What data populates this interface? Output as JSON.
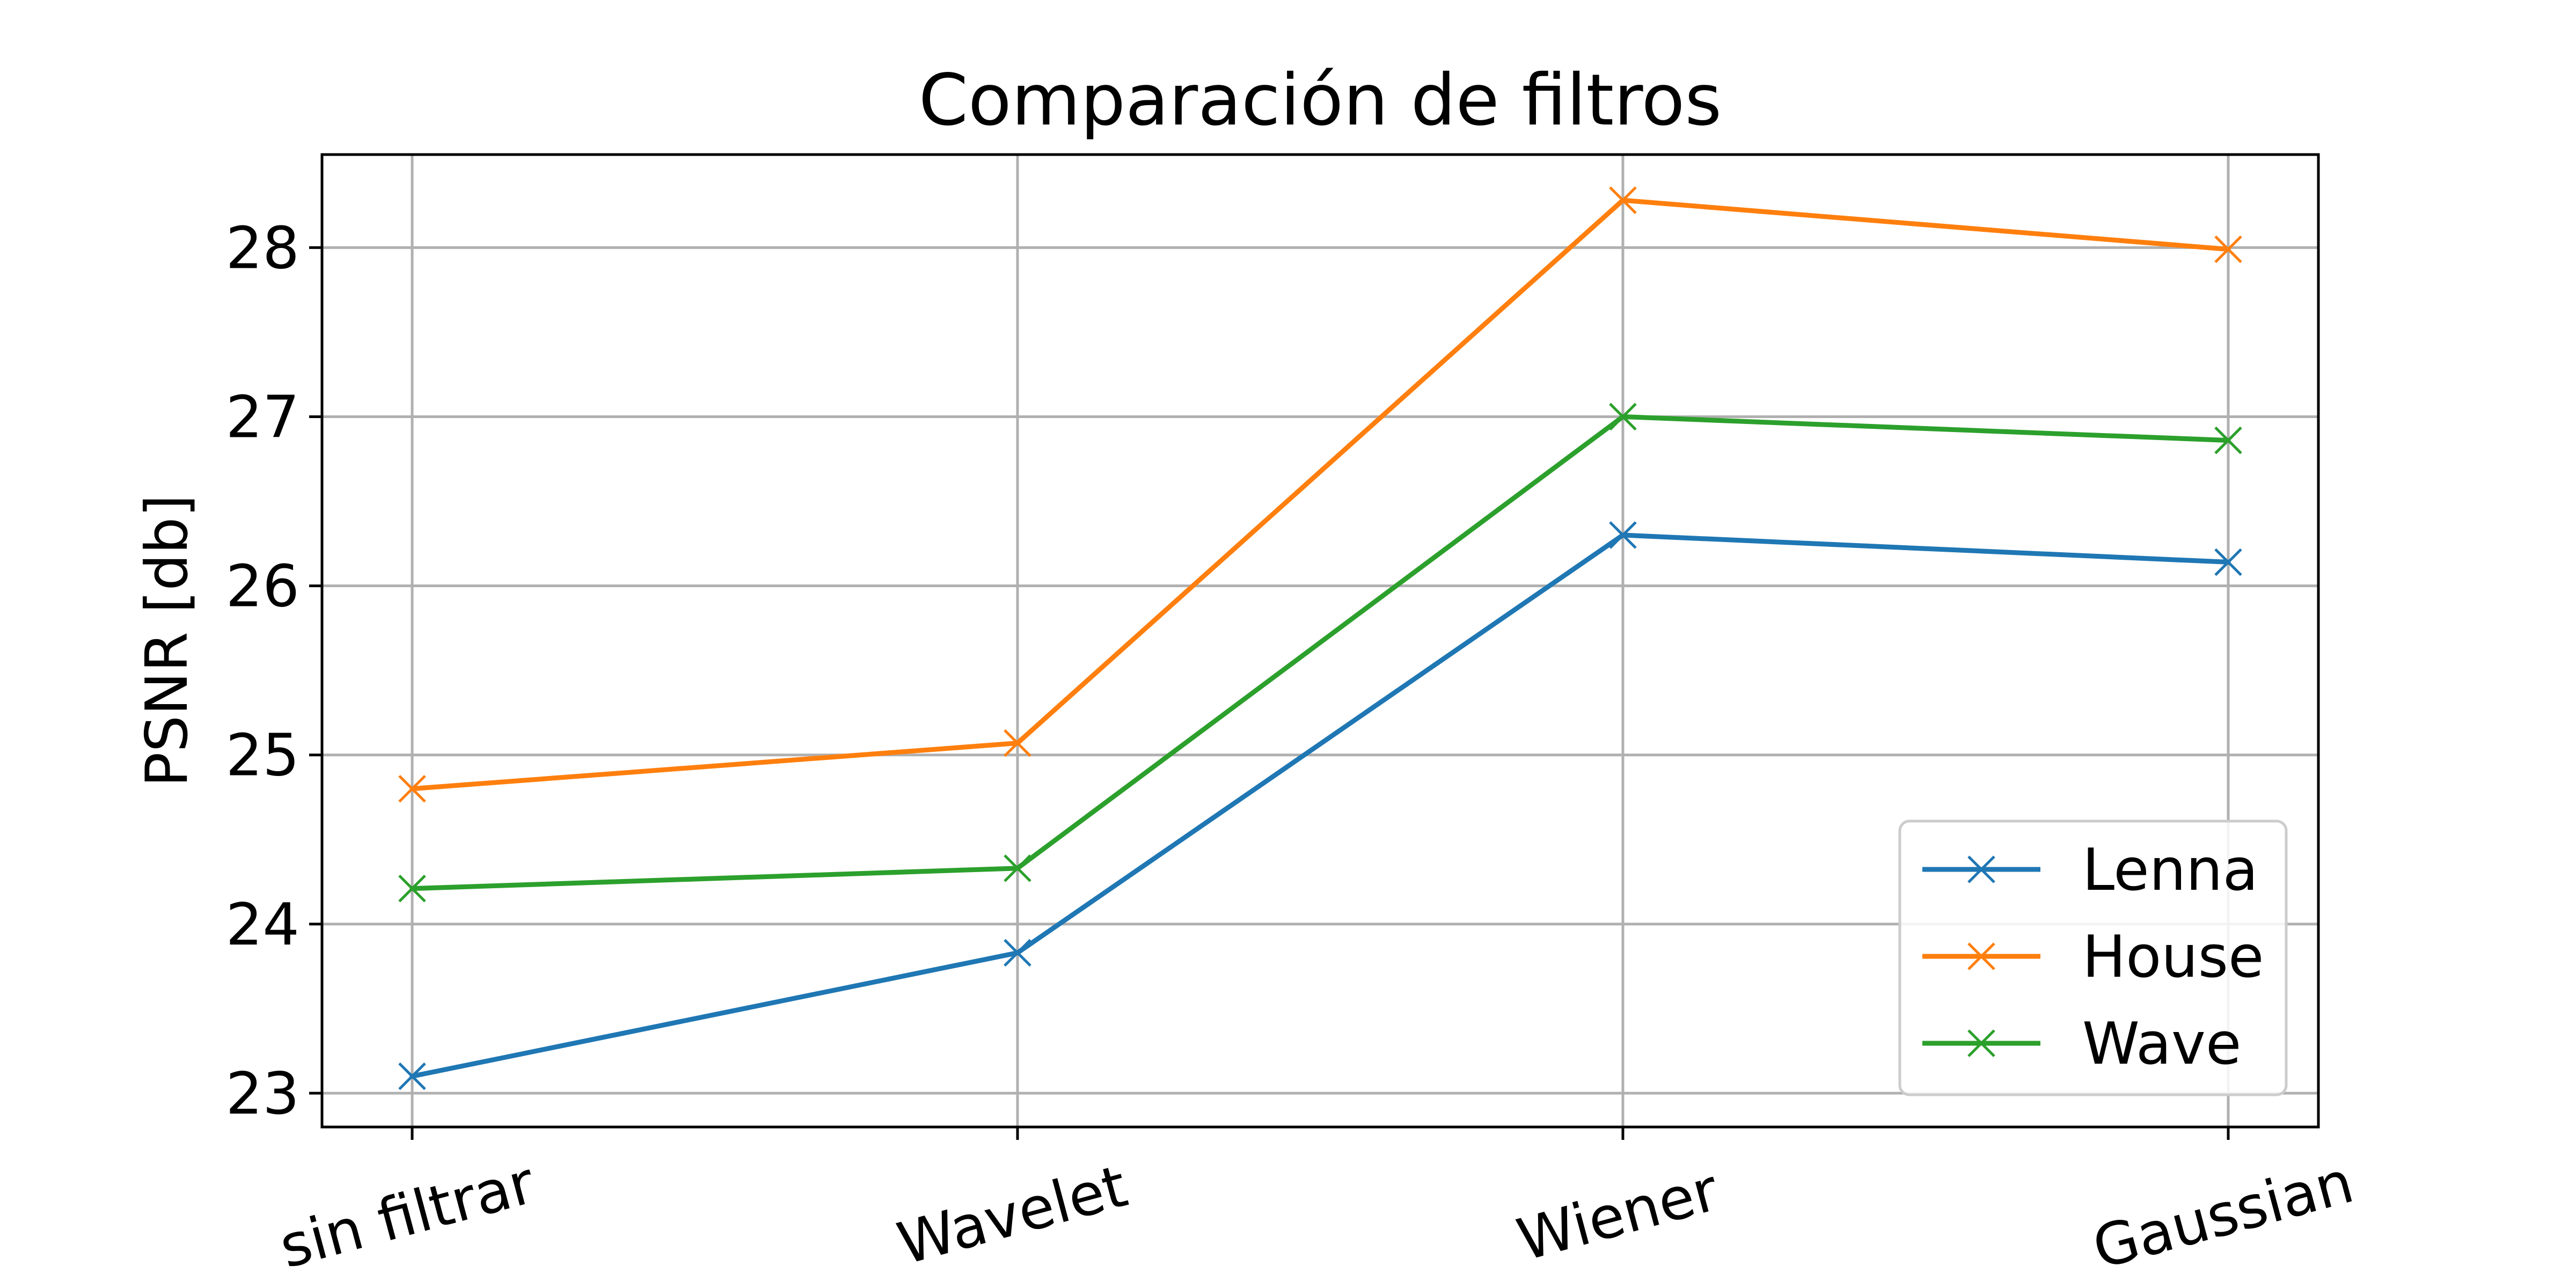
{
  "chart_data": {
    "type": "line",
    "title": "Comparación de filtros",
    "xlabel": "",
    "ylabel": "PSNR [db]",
    "categories": [
      "sin filtrar",
      "Wavelet",
      "Wiener",
      "Gaussian"
    ],
    "ylim": [
      22.8,
      28.55
    ],
    "yticks": [
      23,
      24,
      25,
      26,
      27,
      28
    ],
    "grid": true,
    "legend_position": "lower-right",
    "marker": "x",
    "series": [
      {
        "name": "Lenna",
        "color": "#1f77b4",
        "values": [
          23.1,
          23.83,
          26.3,
          26.14
        ]
      },
      {
        "name": "House",
        "color": "#ff7f0e",
        "values": [
          24.8,
          25.07,
          28.28,
          27.99
        ]
      },
      {
        "name": "Wave",
        "color": "#2ca02c",
        "values": [
          24.21,
          24.33,
          27.0,
          26.86
        ]
      }
    ]
  }
}
